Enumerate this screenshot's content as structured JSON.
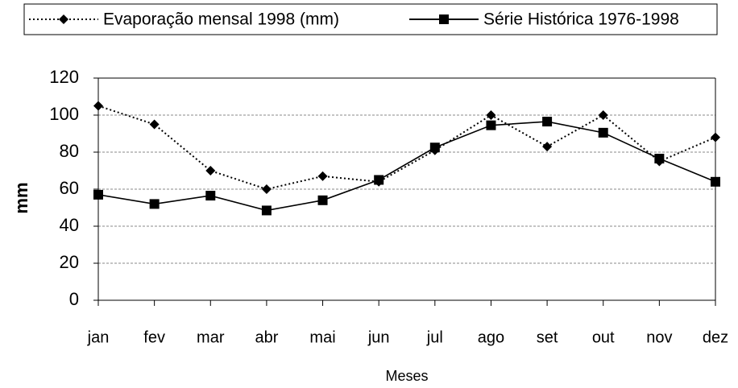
{
  "chart_data": {
    "type": "line",
    "x_label": "Meses",
    "y_label": "mm",
    "categories": [
      "jan",
      "fev",
      "mar",
      "abr",
      "mai",
      "jun",
      "jul",
      "ago",
      "set",
      "out",
      "nov",
      "dez"
    ],
    "series": [
      {
        "name": "Evaporação mensal 1998 (mm)",
        "color": "#000000",
        "line_style": "dotted",
        "marker": "diamond",
        "values": [
          105,
          95,
          70,
          60,
          67,
          64,
          81,
          100,
          83,
          100,
          75,
          88
        ]
      },
      {
        "name": "Série Histórica 1976-1998",
        "color": "#000000",
        "line_style": "solid",
        "marker": "square",
        "values": [
          57,
          52,
          56.5,
          48.5,
          54,
          65,
          82.5,
          94.5,
          96.5,
          90.5,
          76.5,
          64
        ]
      }
    ],
    "ylim": [
      0,
      120
    ],
    "yticks": [
      0,
      20,
      40,
      60,
      80,
      100,
      120
    ],
    "grid": true,
    "legend": "top"
  }
}
